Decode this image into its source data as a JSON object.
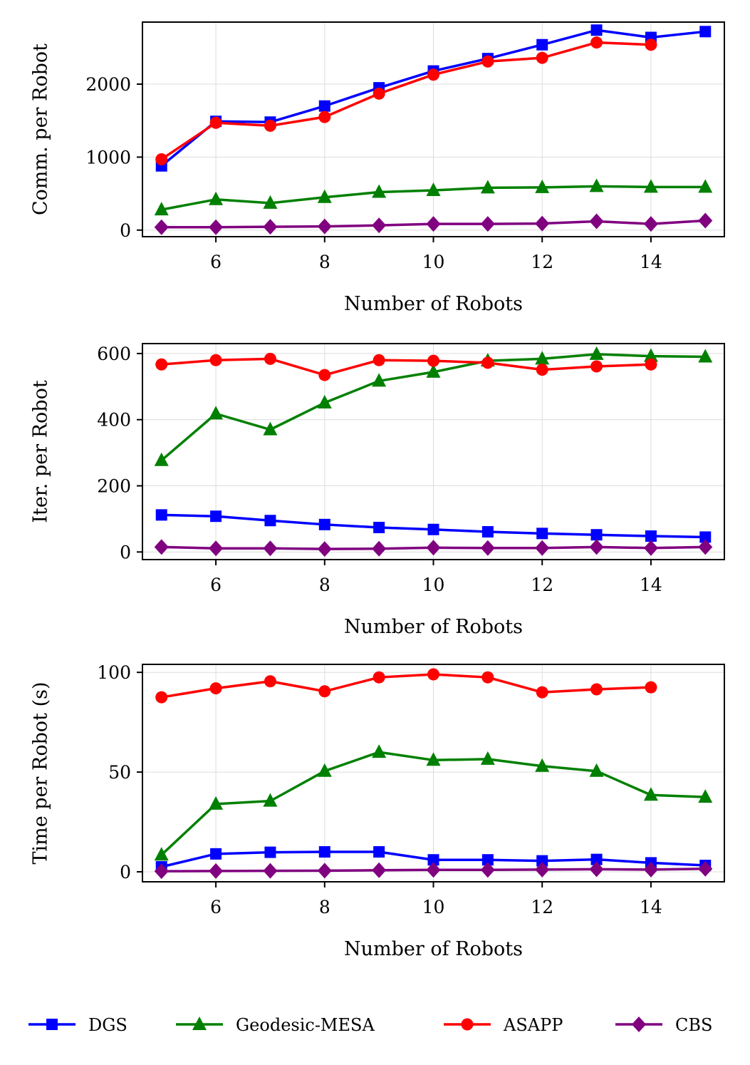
{
  "chart_data": [
    {
      "type": "line",
      "xlabel": "Number of Robots",
      "ylabel": "Comm. per Robot",
      "xlim": [
        4.65,
        15.35
      ],
      "ylim": [
        -90,
        2850
      ],
      "xticks": [
        6,
        8,
        10,
        12,
        14
      ],
      "yticks": [
        0,
        1000,
        2000
      ],
      "grid": true,
      "series": [
        {
          "name": "DGS",
          "x": [
            5,
            6,
            7,
            8,
            9,
            10,
            11,
            12,
            13,
            14,
            15
          ],
          "values": [
            880,
            1490,
            1480,
            1700,
            1950,
            2180,
            2350,
            2540,
            2740,
            2640,
            2720
          ]
        },
        {
          "name": "Geodesic-MESA",
          "x": [
            5,
            6,
            7,
            8,
            9,
            10,
            11,
            12,
            13,
            14,
            15
          ],
          "values": [
            280,
            420,
            370,
            450,
            520,
            545,
            580,
            585,
            600,
            590,
            590
          ]
        },
        {
          "name": "ASAPP",
          "x": [
            5,
            6,
            7,
            8,
            9,
            10,
            11,
            12,
            13,
            14
          ],
          "values": [
            970,
            1470,
            1430,
            1550,
            1870,
            2130,
            2310,
            2360,
            2570,
            2540
          ]
        },
        {
          "name": "CBS",
          "x": [
            5,
            6,
            7,
            8,
            9,
            10,
            11,
            12,
            13,
            14,
            15
          ],
          "values": [
            40,
            40,
            45,
            50,
            65,
            85,
            85,
            90,
            120,
            85,
            130
          ]
        }
      ]
    },
    {
      "type": "line",
      "xlabel": "Number of Robots",
      "ylabel": "Iter. per Robot",
      "xlim": [
        4.65,
        15.35
      ],
      "ylim": [
        -23,
        630
      ],
      "xticks": [
        6,
        8,
        10,
        12,
        14
      ],
      "yticks": [
        0,
        200,
        400,
        600
      ],
      "grid": true,
      "series": [
        {
          "name": "DGS",
          "x": [
            5,
            6,
            7,
            8,
            9,
            10,
            11,
            12,
            13,
            14,
            15
          ],
          "values": [
            112,
            108,
            95,
            83,
            74,
            68,
            61,
            56,
            52,
            48,
            45
          ]
        },
        {
          "name": "Geodesic-MESA",
          "x": [
            5,
            6,
            7,
            8,
            9,
            10,
            11,
            12,
            13,
            14,
            15
          ],
          "values": [
            277,
            418,
            370,
            451,
            517,
            544,
            578,
            584,
            598,
            592,
            590
          ]
        },
        {
          "name": "ASAPP",
          "x": [
            5,
            6,
            7,
            8,
            9,
            10,
            11,
            12,
            13,
            14
          ],
          "values": [
            567,
            580,
            584,
            535,
            580,
            578,
            572,
            551,
            561,
            567
          ]
        },
        {
          "name": "CBS",
          "x": [
            5,
            6,
            7,
            8,
            9,
            10,
            11,
            12,
            13,
            14,
            15
          ],
          "values": [
            15,
            11,
            11,
            9,
            10,
            13,
            12,
            12,
            15,
            12,
            15
          ]
        }
      ]
    },
    {
      "type": "line",
      "xlabel": "Number of Robots",
      "ylabel": "Time per Robot (s)",
      "xlim": [
        4.65,
        15.35
      ],
      "ylim": [
        -5,
        104
      ],
      "xticks": [
        6,
        8,
        10,
        12,
        14
      ],
      "yticks": [
        0,
        50,
        100
      ],
      "grid": true,
      "series": [
        {
          "name": "DGS",
          "x": [
            5,
            6,
            7,
            8,
            9,
            10,
            11,
            12,
            13,
            14,
            15
          ],
          "values": [
            2.5,
            9.0,
            9.8,
            10.0,
            10.0,
            6.0,
            6.0,
            5.5,
            6.2,
            4.5,
            3.2
          ]
        },
        {
          "name": "Geodesic-MESA",
          "x": [
            5,
            6,
            7,
            8,
            9,
            10,
            11,
            12,
            13,
            14,
            15
          ],
          "values": [
            8.5,
            34,
            35.5,
            50.5,
            60,
            56,
            56.5,
            53,
            50.5,
            38.5,
            37.5
          ]
        },
        {
          "name": "ASAPP",
          "x": [
            5,
            6,
            7,
            8,
            9,
            10,
            11,
            12,
            13,
            14
          ],
          "values": [
            87.5,
            92,
            95.5,
            90.5,
            97.5,
            99,
            97.5,
            90,
            91.5,
            92.5
          ]
        },
        {
          "name": "CBS",
          "x": [
            5,
            6,
            7,
            8,
            9,
            10,
            11,
            12,
            13,
            14,
            15
          ],
          "values": [
            0.3,
            0.4,
            0.5,
            0.6,
            0.8,
            1.0,
            1.0,
            1.1,
            1.3,
            1.1,
            1.5
          ]
        }
      ]
    }
  ],
  "legend": {
    "placement": "bottom",
    "entries": [
      {
        "name": "DGS",
        "color": "#0000ff",
        "marker": "square"
      },
      {
        "name": "Geodesic-MESA",
        "color": "#008000",
        "marker": "triangle"
      },
      {
        "name": "ASAPP",
        "color": "#ff0000",
        "marker": "circle"
      },
      {
        "name": "CBS",
        "color": "#800080",
        "marker": "diamond"
      }
    ]
  },
  "styles": {
    "DGS": {
      "color": "#0000ff",
      "marker": "square"
    },
    "Geodesic-MESA": {
      "color": "#008000",
      "marker": "triangle"
    },
    "ASAPP": {
      "color": "#ff0000",
      "marker": "circle"
    },
    "CBS": {
      "color": "#800080",
      "marker": "diamond"
    }
  }
}
